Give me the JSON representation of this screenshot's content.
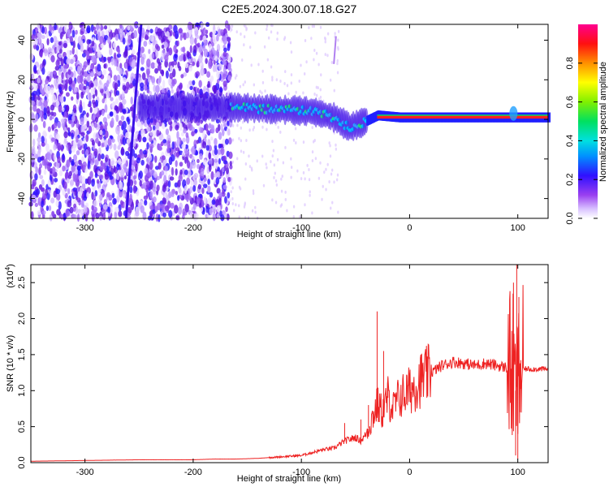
{
  "title": "C2E5.2024.300.07.18.G27",
  "chart_data": [
    {
      "type": "heatmap",
      "xlabel": "Height of straight line (km)",
      "ylabel": "Frequency (Hz)",
      "xlim": [
        -350,
        128
      ],
      "ylim": [
        -50,
        48
      ],
      "xticks": [
        -300,
        -200,
        -100,
        0,
        100
      ],
      "yticks": [
        -40,
        -20,
        0,
        20,
        40
      ],
      "colorbar": {
        "label": "Normalized spectral amplitude",
        "range": [
          0,
          1
        ],
        "ticks": [
          "0.0",
          "0.2",
          "0.4",
          "0.6",
          "0.8"
        ],
        "colormap": [
          "#ffffff",
          "#c9a8ff",
          "#8a2be2",
          "#2010ff",
          "#00c0ff",
          "#00e0a0",
          "#40e000",
          "#ffff00",
          "#ff8000",
          "#ff0000",
          "#ff0090"
        ]
      },
      "ridge": {
        "description_x": [
          -160,
          -120,
          -90,
          -70,
          -55,
          -45,
          -30,
          -10,
          0,
          20,
          60,
          95,
          110,
          128
        ],
        "frequency": [
          6,
          5,
          4,
          1,
          -4,
          -2,
          2,
          1,
          1,
          1,
          1,
          1,
          1,
          1
        ]
      }
    },
    {
      "type": "line",
      "xlabel": "Height of straight line (km)",
      "ylabel": "SNR (10 * v/v)",
      "scale_label": "(x10",
      "scale_exp": "4",
      "xlim": [
        -350,
        128
      ],
      "ylim": [
        0,
        2.75
      ],
      "xticks": [
        -300,
        -200,
        -100,
        0,
        100
      ],
      "yticks": [
        "0.0",
        "0.5",
        "1.0",
        "1.5",
        "2.0",
        "2.5"
      ],
      "color": "#ee2222",
      "series": [
        {
          "x": [
            -350,
            -300,
            -250,
            -200,
            -180,
            -160,
            -140,
            -120,
            -100,
            -80,
            -70,
            -60,
            -50,
            -45,
            -40,
            -35,
            -30,
            -25,
            -20,
            -15,
            -10,
            -5,
            0,
            10,
            20,
            30,
            40,
            50,
            60,
            70,
            80,
            90,
            95,
            98,
            100,
            102,
            105,
            110,
            128
          ],
          "y": [
            0.02,
            0.03,
            0.04,
            0.04,
            0.05,
            0.05,
            0.06,
            0.08,
            0.1,
            0.18,
            0.2,
            0.3,
            0.35,
            0.3,
            0.4,
            0.6,
            0.8,
            0.7,
            0.9,
            0.75,
            0.9,
            0.95,
            1.0,
            1.15,
            1.25,
            1.35,
            1.4,
            1.38,
            1.35,
            1.38,
            1.35,
            1.32,
            1.3,
            1.0,
            1.1,
            1.3,
            1.3,
            1.3,
            1.3
          ]
        }
      ],
      "spikes": {
        "x": [
          -30,
          -24,
          -45,
          -38,
          -60,
          -20,
          96,
          98,
          99,
          100,
          101,
          102
        ],
        "y": [
          2.1,
          1.55,
          0.6,
          0.8,
          0.55,
          1.2,
          2.5,
          0.1,
          2.75,
          0.05,
          2.3,
          0.7
        ]
      }
    }
  ]
}
